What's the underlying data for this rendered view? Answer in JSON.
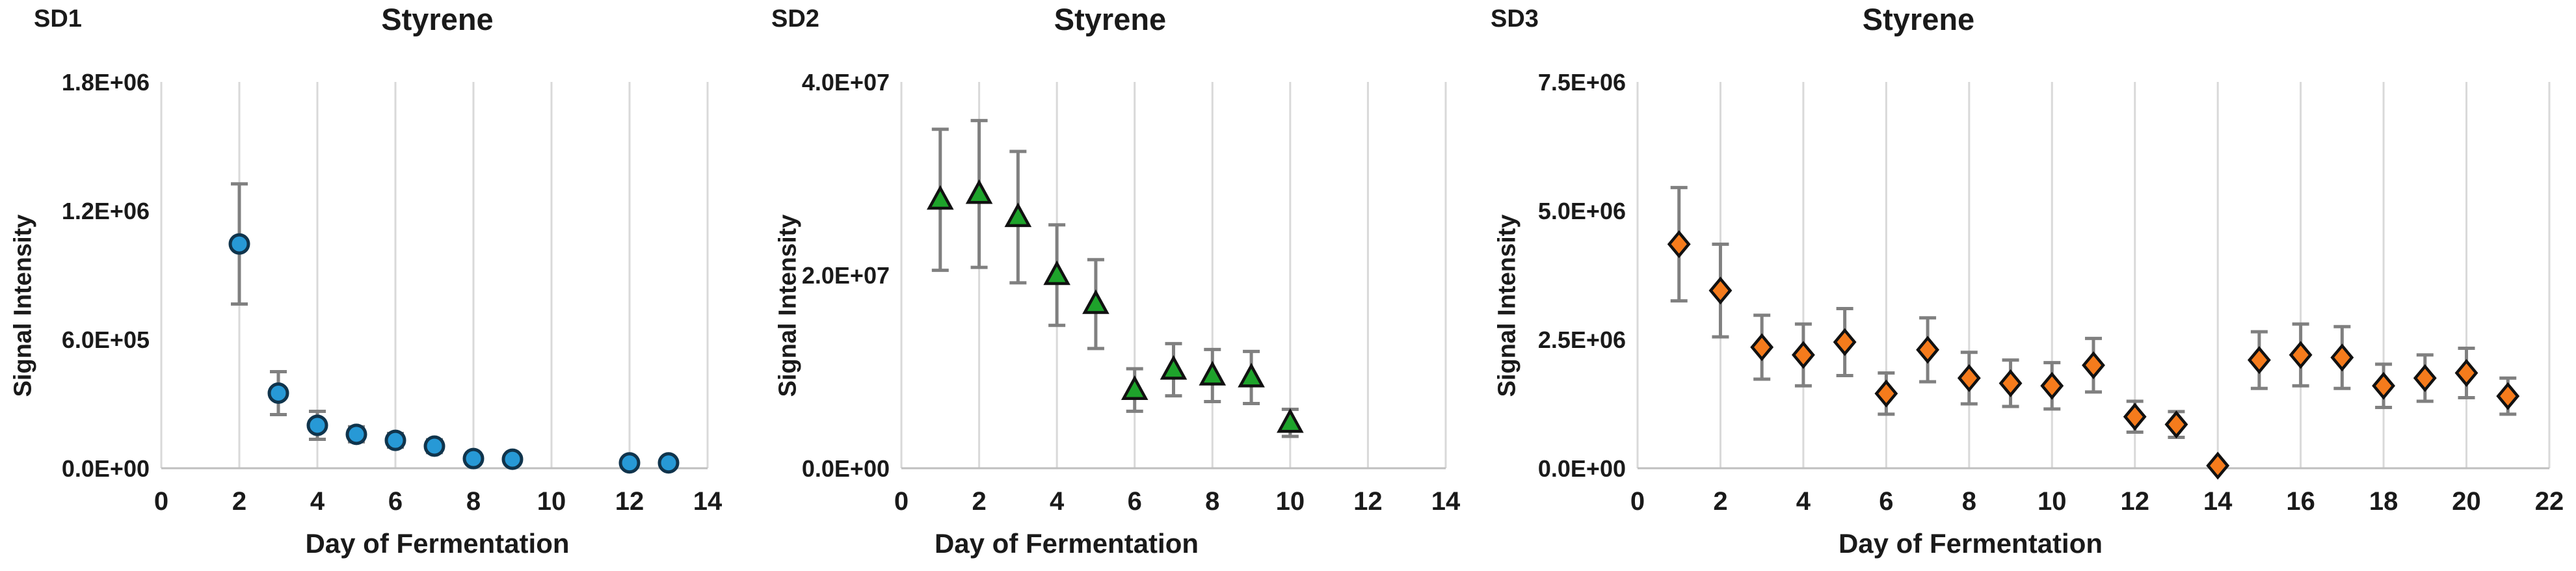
{
  "style": {
    "background": "#FFFFFF",
    "text": "#1A1A1A",
    "gridline": "#D9D9D9",
    "axis_line": "#BFBFBF",
    "error_bar": "#808080"
  },
  "chart_data": [
    {
      "panel_label": "SD1",
      "type": "scatter",
      "title": "Styrene",
      "xlabel": "Day of Fermentation",
      "ylabel": "Signal Intensity",
      "marker": {
        "shape": "circle",
        "name": "blue-circle-marker",
        "fill": "#2799D6",
        "stroke": "#10344C"
      },
      "grid": "vertical",
      "legend": null,
      "xlim": [
        0,
        14
      ],
      "ylim": [
        0,
        1800000
      ],
      "xticks": [
        0,
        2,
        4,
        6,
        8,
        10,
        12,
        14
      ],
      "yticks": [
        {
          "value": 0,
          "label": "0.0E+00"
        },
        {
          "value": 600000,
          "label": "6.0E+05"
        },
        {
          "value": 1200000,
          "label": "1.2E+06"
        },
        {
          "value": 1800000,
          "label": "1.8E+06"
        }
      ],
      "x": [
        2,
        3,
        4,
        5,
        6,
        7,
        8,
        9,
        12,
        13
      ],
      "y": [
        1045000,
        350000,
        200000,
        158000,
        130000,
        103000,
        45000,
        42000,
        25000,
        25000
      ],
      "yerr": [
        280000,
        100000,
        65000,
        35000,
        32000,
        30000,
        25000,
        20000,
        15000,
        15000
      ]
    },
    {
      "panel_label": "SD2",
      "type": "scatter",
      "title": "Styrene",
      "xlabel": "Day of Fermentation",
      "ylabel": "Signal Intensity",
      "marker": {
        "shape": "triangle",
        "name": "green-triangle-marker",
        "fill": "#1EA32B",
        "stroke": "#111111"
      },
      "grid": "vertical",
      "legend": null,
      "xlim": [
        0,
        14
      ],
      "ylim": [
        0,
        40000000
      ],
      "xticks": [
        0,
        2,
        4,
        6,
        8,
        10,
        12,
        14
      ],
      "yticks": [
        {
          "value": 0,
          "label": "0.0E+00"
        },
        {
          "value": 20000000,
          "label": "2.0E+07"
        },
        {
          "value": 40000000,
          "label": "4.0E+07"
        }
      ],
      "x": [
        1,
        2,
        3,
        4,
        5,
        6,
        7,
        8,
        9,
        10
      ],
      "y": [
        27800000,
        28400000,
        26000000,
        20000000,
        17000000,
        8100000,
        10200000,
        9600000,
        9400000,
        4700000
      ],
      "yerr": [
        7300000,
        7600000,
        6800000,
        5200000,
        4600000,
        2200000,
        2700000,
        2700000,
        2700000,
        1400000
      ]
    },
    {
      "panel_label": "SD3",
      "type": "scatter",
      "title": "Styrene",
      "xlabel": "Day of Fermentation",
      "ylabel": "Signal Intensity",
      "marker": {
        "shape": "diamond",
        "name": "orange-diamond-marker",
        "fill": "#F57B1C",
        "stroke": "#111111"
      },
      "grid": "vertical",
      "legend": null,
      "xlim": [
        0,
        22
      ],
      "ylim": [
        0,
        7500000
      ],
      "xticks": [
        0,
        2,
        4,
        6,
        8,
        10,
        12,
        14,
        16,
        18,
        20,
        22
      ],
      "yticks": [
        {
          "value": 0,
          "label": "0.0E+00"
        },
        {
          "value": 2500000,
          "label": "2.5E+06"
        },
        {
          "value": 5000000,
          "label": "5.0E+06"
        },
        {
          "value": 7500000,
          "label": "7.5E+06"
        }
      ],
      "x": [
        1,
        2,
        3,
        4,
        5,
        6,
        7,
        8,
        9,
        10,
        11,
        12,
        13,
        14,
        15,
        16,
        17,
        18,
        19,
        20,
        21
      ],
      "y": [
        4350000,
        3450000,
        2350000,
        2200000,
        2450000,
        1450000,
        2300000,
        1750000,
        1650000,
        1600000,
        2000000,
        1000000,
        850000,
        50000,
        2100000,
        2200000,
        2150000,
        1600000,
        1750000,
        1850000,
        1400000
      ],
      "yerr": [
        1100000,
        900000,
        620000,
        600000,
        650000,
        400000,
        620000,
        500000,
        450000,
        450000,
        520000,
        300000,
        250000,
        0,
        550000,
        600000,
        600000,
        420000,
        450000,
        480000,
        350000
      ]
    }
  ]
}
